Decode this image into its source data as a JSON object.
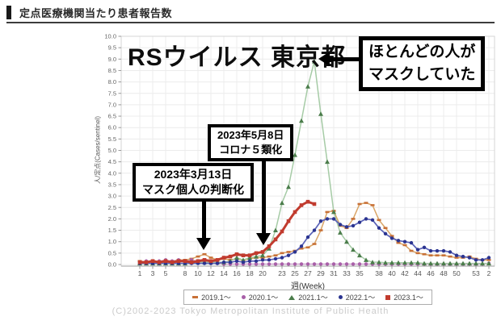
{
  "header": {
    "title": "定点医療機関当たり患者報告数"
  },
  "chart": {
    "title": "RSウイルス 東京都",
    "y_axis_title": "人/定点(Cases/sentinel)",
    "x_axis_title": "週(Week)",
    "copyright": "(C)2002-2023 Tokyo Metropolitan Institute of Public Health"
  },
  "annotations": [
    {
      "id": "mask-personal-judgment",
      "lines": [
        "2023年3月13日",
        "マスク個人の判断化"
      ]
    },
    {
      "id": "corona-class5",
      "lines": [
        "2023年5月8日",
        "コロナ５類化"
      ]
    },
    {
      "id": "most-people-masked",
      "lines": [
        "ほとんどの人が",
        "マスクしていた"
      ]
    }
  ],
  "chart_data": {
    "type": "line",
    "title": "RSウイルス 東京都",
    "xlabel": "週(Week)",
    "ylabel": "人/定点(Cases/sentinel)",
    "ylim": [
      0,
      10
    ],
    "ystep": 0.5,
    "grid": true,
    "legend_position": "bottom",
    "x_weeks_total": 55,
    "x_tick_labels": [
      {
        "label": "1",
        "week": 1
      },
      {
        "label": "3",
        "week": 3
      },
      {
        "label": "5",
        "week": 5
      },
      {
        "label": "8",
        "week": 8
      },
      {
        "label": "10",
        "week": 10
      },
      {
        "label": "12",
        "week": 12
      },
      {
        "label": "14",
        "week": 14
      },
      {
        "label": "16",
        "week": 16
      },
      {
        "label": "18",
        "week": 18
      },
      {
        "label": "20",
        "week": 20
      },
      {
        "label": "23",
        "week": 23
      },
      {
        "label": "25",
        "week": 25
      },
      {
        "label": "27",
        "week": 27
      },
      {
        "label": "29",
        "week": 29
      },
      {
        "label": "31",
        "week": 31
      },
      {
        "label": "33",
        "week": 33
      },
      {
        "label": "35",
        "week": 35
      },
      {
        "label": "38",
        "week": 38
      },
      {
        "label": "40",
        "week": 40
      },
      {
        "label": "42",
        "week": 42
      },
      {
        "label": "44",
        "week": 44
      },
      {
        "label": "46",
        "week": 46
      },
      {
        "label": "48",
        "week": 48
      },
      {
        "label": "50",
        "week": 50
      },
      {
        "label": "53",
        "week": 53
      },
      {
        "label": "2",
        "week": 55
      }
    ],
    "series": [
      {
        "name": "2019.1～",
        "marker": "dash",
        "color": "#c87137",
        "line_color": "#d9a567",
        "line_width": 1.5,
        "values": [
          0.15,
          0.1,
          0.15,
          0.1,
          0.15,
          0.15,
          0.2,
          0.2,
          0.25,
          0.35,
          0.45,
          0.3,
          0.2,
          0.25,
          0.2,
          0.25,
          0.2,
          0.25,
          0.3,
          0.3,
          0.35,
          0.4,
          0.5,
          0.55,
          0.6,
          0.7,
          0.75,
          0.9,
          1.5,
          2.3,
          2.35,
          1.7,
          1.6,
          2.0,
          2.65,
          2.7,
          2.6,
          1.95,
          1.6,
          1.25,
          0.95,
          0.85,
          0.6,
          0.5,
          0.45,
          0.4,
          0.4,
          0.4,
          0.35,
          0.3,
          0.3,
          0.35,
          0.25,
          0.2,
          0.2
        ]
      },
      {
        "name": "2020.1～",
        "marker": "circle",
        "color": "#a85fa8",
        "line_color": "#c9a0c9",
        "line_width": 1.3,
        "values": [
          0.1,
          0.15,
          0.1,
          0.15,
          0.2,
          0.15,
          0.2,
          0.15,
          0.2,
          0.15,
          0.1,
          0.05,
          0.05,
          0.02,
          0.02,
          0.02,
          0.02,
          0.02,
          0.02,
          0.02,
          0.02,
          0.02,
          0.02,
          0.02,
          0.02,
          0.02,
          0.02,
          0.02,
          0.02,
          0.02,
          0.02,
          0.02,
          0.02,
          0.02,
          0.02,
          0.02,
          0.02,
          0.02,
          0.02,
          0.02,
          0.02,
          0.02,
          0.02,
          0.02,
          0.02,
          0.02,
          0.02,
          0.02,
          0.02,
          0.02,
          0.02,
          0.02,
          0.02,
          0.02,
          0.05
        ]
      },
      {
        "name": "2021.1～",
        "marker": "triangle",
        "color": "#4a7c4a",
        "line_color": "#a6cba6",
        "line_width": 1.5,
        "values": [
          0.05,
          0.05,
          0.05,
          0.05,
          0.05,
          0.05,
          0.05,
          0.05,
          0.1,
          0.1,
          0.1,
          0.1,
          0.1,
          0.1,
          0.15,
          0.3,
          0.2,
          0.3,
          0.35,
          0.4,
          0.7,
          1.5,
          2.7,
          3.4,
          4.8,
          6.3,
          7.8,
          8.9,
          6.6,
          4.5,
          2.3,
          1.4,
          1.0,
          0.65,
          0.4,
          0.2,
          0.1,
          0.1,
          0.08,
          0.08,
          0.08,
          0.08,
          0.08,
          0.08,
          0.05,
          0.05,
          0.05,
          0.05,
          0.05,
          0.05,
          0.05,
          0.05,
          0.05,
          0.05,
          0.05
        ]
      },
      {
        "name": "2022.1～",
        "marker": "circle",
        "color": "#2b3490",
        "line_color": "#5b63b8",
        "line_width": 1.7,
        "values": [
          0.05,
          0.05,
          0.05,
          0.05,
          0.05,
          0.05,
          0.05,
          0.05,
          0.05,
          0.05,
          0.05,
          0.05,
          0.05,
          0.1,
          0.1,
          0.15,
          0.1,
          0.15,
          0.15,
          0.2,
          0.2,
          0.25,
          0.3,
          0.4,
          0.55,
          0.8,
          1.2,
          1.5,
          1.9,
          2.0,
          2.0,
          1.75,
          1.65,
          1.7,
          1.85,
          2.0,
          1.95,
          1.6,
          1.35,
          1.15,
          1.05,
          1.0,
          0.95,
          0.65,
          0.75,
          0.6,
          0.6,
          0.6,
          0.55,
          0.4,
          0.35,
          0.3,
          0.2,
          0.2,
          0.3
        ]
      },
      {
        "name": "2023.1～",
        "marker": "square",
        "color": "#c13b2e",
        "line_color": "#c13b2e",
        "line_width": 3,
        "values": [
          0.1,
          0.1,
          0.15,
          0.1,
          0.15,
          0.1,
          0.15,
          0.15,
          0.1,
          0.15,
          0.2,
          0.15,
          0.2,
          0.3,
          0.35,
          0.45,
          0.4,
          0.4,
          0.5,
          0.55,
          0.8,
          1.1,
          1.45,
          1.9,
          2.3,
          2.6,
          2.75,
          2.65
        ]
      }
    ]
  }
}
